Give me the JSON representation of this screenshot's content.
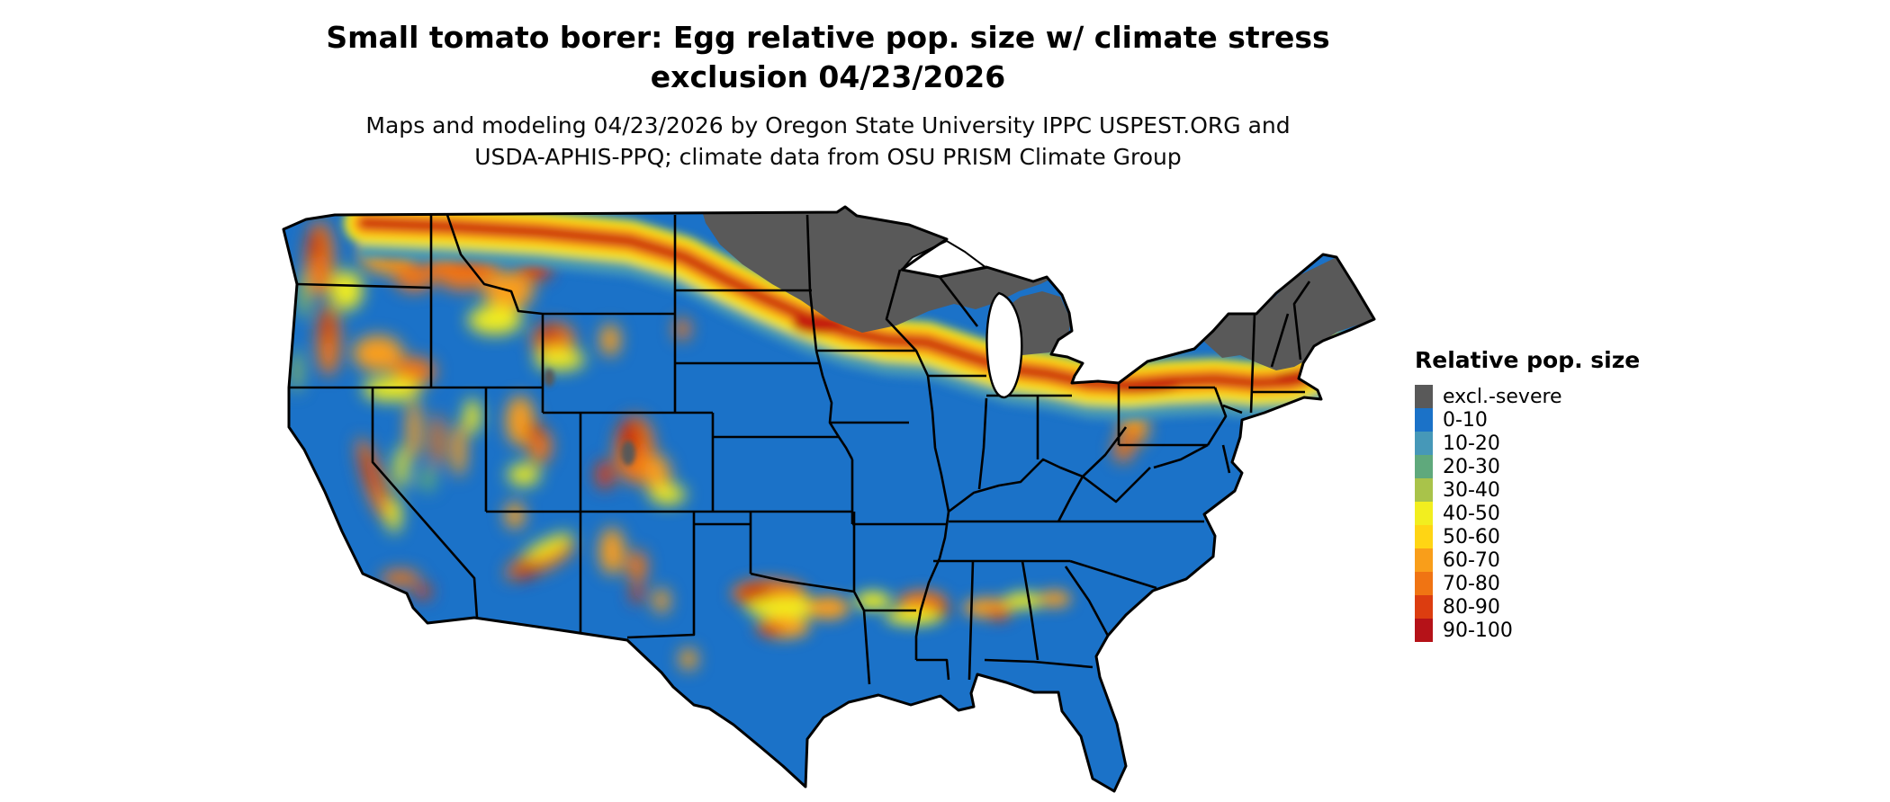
{
  "header": {
    "title_line1": "Small tomato borer: Egg relative pop. size w/ climate stress",
    "title_line2": "exclusion 04/23/2026",
    "subtitle_line1": "Maps and modeling 04/23/2026 by Oregon State University IPPC USPEST.ORG and",
    "subtitle_line2": "USDA-APHIS-PPQ; climate data from OSU PRISM Climate Group"
  },
  "legend": {
    "title": "Relative pop. size",
    "items": [
      {
        "label": "excl.-severe",
        "color": "#595959"
      },
      {
        "label": "0-10",
        "color": "#1b72c8"
      },
      {
        "label": "10-20",
        "color": "#4698b8"
      },
      {
        "label": "20-30",
        "color": "#5fa97c"
      },
      {
        "label": "30-40",
        "color": "#a9c34a"
      },
      {
        "label": "40-50",
        "color": "#f2ee1f"
      },
      {
        "label": "50-60",
        "color": "#ffd514"
      },
      {
        "label": "60-70",
        "color": "#f99e1a"
      },
      {
        "label": "70-80",
        "color": "#f07413"
      },
      {
        "label": "80-90",
        "color": "#dc3d10"
      },
      {
        "label": "90-100",
        "color": "#b51218"
      }
    ]
  }
}
